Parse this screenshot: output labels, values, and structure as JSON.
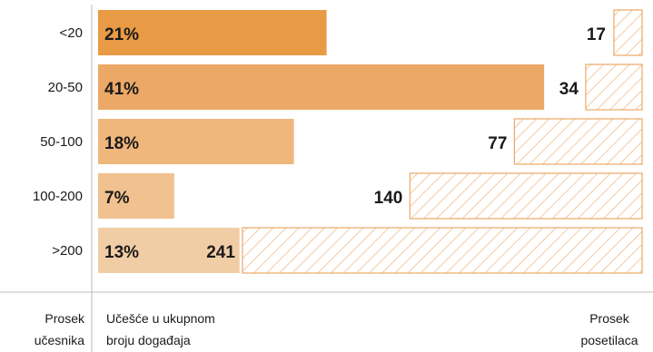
{
  "chart_data": {
    "type": "bar",
    "categories": [
      "<20",
      "20-50",
      "50-100",
      "100-200",
      ">200"
    ],
    "series": [
      {
        "values": [
          21,
          41,
          18,
          7,
          13
        ],
        "unit": "%"
      },
      {
        "values": [
          17,
          34,
          77,
          140,
          241
        ]
      }
    ],
    "share_colors": [
      "#e89a45",
      "#eba866",
      "#efb77c",
      "#f1c18f",
      "#f1cda6"
    ],
    "hatch_color": "#eba866",
    "footer": {
      "left_line1": "Prosek",
      "left_line2": "učesnika",
      "middle_line1": "Učešće u ukupnom",
      "middle_line2": "broju događaja",
      "right_line1": "Prosek",
      "right_line2": "posetilaca"
    }
  }
}
